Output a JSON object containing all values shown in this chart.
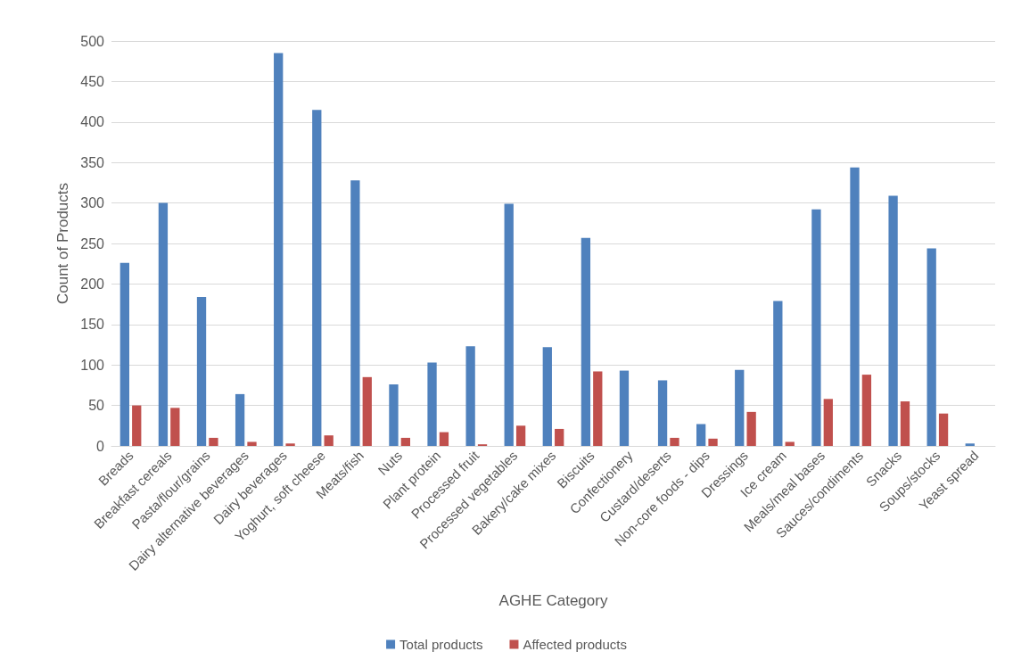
{
  "chart_data": {
    "type": "bar",
    "xlabel": "AGHE Category",
    "ylabel": "Count of Products",
    "categories": [
      "Breads",
      "Breakfast cereals",
      "Pasta/flour/grains",
      "Dairy alternative beverages",
      "Dairy beverages",
      "Yoghurt, soft cheese",
      "Meats/fish",
      "Nuts",
      "Plant protein",
      "Processed fruit",
      "Processed vegetables",
      "Bakery/cake mixes",
      "Biscuits",
      "Confectionery",
      "Custard/deserts",
      "Non-core foods - dips",
      "Dressings",
      "Ice cream",
      "Meals/meal bases",
      "Sauces/condiments",
      "Snacks",
      "Soups/stocks",
      "Yeast spread"
    ],
    "series": [
      {
        "name": "Total products",
        "color": "#4f81bd",
        "values": [
          226,
          300,
          184,
          64,
          485,
          415,
          328,
          76,
          103,
          123,
          299,
          122,
          257,
          93,
          81,
          27,
          94,
          179,
          292,
          344,
          309,
          244,
          3
        ]
      },
      {
        "name": "Affected products",
        "color": "#c0504d",
        "values": [
          50,
          47,
          10,
          5,
          3,
          13,
          85,
          10,
          17,
          2,
          25,
          21,
          92,
          0,
          10,
          9,
          42,
          5,
          58,
          88,
          55,
          40,
          0
        ]
      }
    ],
    "ylim": [
      0,
      500
    ],
    "yticks": [
      0,
      50,
      100,
      150,
      200,
      250,
      300,
      350,
      400,
      450,
      500
    ],
    "grid": "y",
    "legend": "bottom"
  }
}
